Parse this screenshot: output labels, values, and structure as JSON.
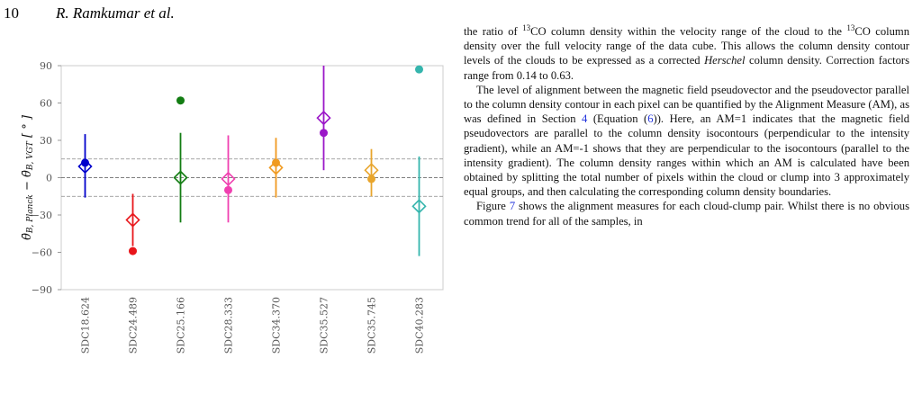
{
  "header": {
    "page": "10",
    "authors": "R. Ramkumar et al."
  },
  "chart_data": {
    "type": "errorbar",
    "ylabel": [
      "θ̄",
      "B, Planck",
      " − θ̄",
      "B, VGT",
      " [ ° ]"
    ],
    "categories": [
      "SDC18.624",
      "SDC24.489",
      "SDC25.166",
      "SDC28.333",
      "SDC34.370",
      "SDC35.527",
      "SDC35.745",
      "SDC40.283"
    ],
    "colors": [
      "#0000cc",
      "#e8161b",
      "#137d13",
      "#f040b0",
      "#f09a20",
      "#9b17c8",
      "#e8a52c",
      "#35b5ad"
    ],
    "circles": [
      12,
      -59,
      62,
      -10,
      12,
      36,
      -1,
      87
    ],
    "diamonds": [
      9,
      -34,
      0,
      -1,
      8,
      48,
      6,
      -23
    ],
    "lower": [
      -16,
      -55,
      -36,
      -36,
      -16,
      6,
      -15,
      -63
    ],
    "upper": [
      35,
      -13,
      36,
      34,
      32,
      90,
      23,
      17
    ],
    "hlines": [
      -15,
      0,
      15
    ],
    "ylim": [
      -90,
      90
    ],
    "yticks": [
      {
        "value": -90,
        "label": "−90"
      },
      {
        "value": -60,
        "label": "−60"
      },
      {
        "value": -30,
        "label": "−30"
      },
      0,
      30,
      60,
      90
    ],
    "grid": false
  },
  "body": {
    "paragraphs": [
      [
        "the ratio of ",
        {
          "sup": "13"
        },
        "CO column density within the velocity range of the cloud to the ",
        {
          "sup": "13"
        },
        "CO column density over the full velocity range of the data cube. This allows the column density contour levels of the clouds to be expressed as a corrected ",
        {
          "em": "Herschel"
        },
        " column density. Correction factors range from 0.14 to 0.63."
      ],
      [
        "The level of alignment between the magnetic field pseudovector and the pseudovector parallel to the column density contour in each pixel can be quantified by the Alignment Measure (AM), as was defined in Section ",
        {
          "link": "4"
        },
        " (Equation (",
        {
          "link": "6"
        },
        ")). Here, an AM=1 indicates that the magnetic field pseudovectors are parallel to the column density isocontours (perpendicular to the intensity gradient), while an AM=-1 shows that they are perpendicular to the isocontours (parallel to the intensity gradient). The column density ranges within which an AM is calculated have been obtained by splitting the total number of pixels within the cloud or clump into 3 approximately equal groups, and then calculating the corresponding column density boundaries."
      ],
      [
        "Figure ",
        {
          "link": "7"
        },
        " shows the alignment measures for each cloud-clump pair. Whilst there is no obvious common trend for all of the samples, in"
      ]
    ]
  }
}
